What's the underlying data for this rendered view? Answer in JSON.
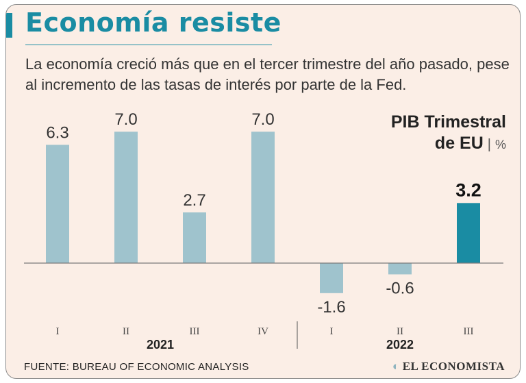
{
  "header": {
    "title": "Economía resiste",
    "subtitle": "La economía creció más que en el tercer trimestre del año pasado, pese al incremento de las tasas de interés por parte de la Fed."
  },
  "chart_label": {
    "line1": "PIB Trimestral",
    "line2": "de EU",
    "separator": "|",
    "unit": "%"
  },
  "chart_data": {
    "type": "bar",
    "title": "PIB Trimestral de EU",
    "ylabel": "%",
    "categories": [
      "I",
      "II",
      "III",
      "IV",
      "I",
      "II",
      "III"
    ],
    "values": [
      6.3,
      7.0,
      2.7,
      7.0,
      -1.6,
      -0.6,
      3.2
    ],
    "value_labels": [
      "6.3",
      "7.0",
      "2.7",
      "7.0",
      "-1.6",
      "-0.6",
      "3.2"
    ],
    "highlight_index": 6,
    "year_groups": [
      {
        "label": "2021",
        "start": 0,
        "end": 3
      },
      {
        "label": "2022",
        "start": 4,
        "end": 6
      }
    ],
    "ylim": [
      -2.5,
      7.5
    ],
    "colors": {
      "bar": "#9fc3cd",
      "highlight": "#1a8ca3",
      "axis": "#7a7a7a"
    }
  },
  "footer": {
    "source": "FUENTE: BUREAU OF ECONOMIC ANALYSIS",
    "brand": "EL ECONOMISTA",
    "brand_icon": "globe-icon"
  }
}
